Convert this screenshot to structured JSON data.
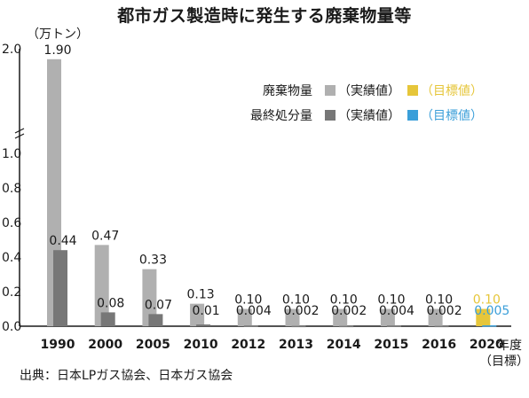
{
  "title": "都市ガス製造時に発生する廃棄物量等",
  "unit_label": "（万トン）",
  "source_text": "出典：日本LPガス協会、日本ガス協会",
  "year_suffix": "年度",
  "year_sub": "（目標）",
  "legend": {
    "rows": [
      {
        "label": "廃棄物量",
        "actual_color": "#b0b0b0",
        "target_color": "#e6c63a",
        "actual_text": "（実績値）",
        "target_text": "（目標値）"
      },
      {
        "label": "最終処分量",
        "actual_color": "#777777",
        "target_color": "#3b9fd9",
        "actual_text": "（実績値）",
        "target_text": "（目標値）"
      }
    ]
  },
  "chart_data": {
    "type": "bar",
    "title": "都市ガス製造時に発生する廃棄物量等",
    "xlabel": "年度",
    "ylabel": "（万トン）",
    "axis_break": true,
    "y_ticks": [
      "0.0",
      "0.2",
      "0.4",
      "0.6",
      "0.8",
      "1.0",
      "2.0"
    ],
    "categories": [
      "1990",
      "2000",
      "2005",
      "2010",
      "2012",
      "2013",
      "2014",
      "2015",
      "2016",
      "2020"
    ],
    "series": [
      {
        "name": "廃棄物量",
        "values": [
          1.9,
          0.47,
          0.33,
          0.13,
          0.1,
          0.1,
          0.1,
          0.1,
          0.1,
          0.1
        ],
        "labels": [
          "1.90",
          "0.47",
          "0.33",
          "0.13",
          "0.10",
          "0.10",
          "0.10",
          "0.10",
          "0.10",
          "0.10"
        ],
        "colors": [
          "#b0b0b0",
          "#b0b0b0",
          "#b0b0b0",
          "#b0b0b0",
          "#b0b0b0",
          "#b0b0b0",
          "#b0b0b0",
          "#b0b0b0",
          "#b0b0b0",
          "#e6c63a"
        ],
        "label_colors": [
          "#1a1a1a",
          "#1a1a1a",
          "#1a1a1a",
          "#1a1a1a",
          "#1a1a1a",
          "#1a1a1a",
          "#1a1a1a",
          "#1a1a1a",
          "#1a1a1a",
          "#e6c63a"
        ]
      },
      {
        "name": "最終処分量",
        "values": [
          0.44,
          0.08,
          0.07,
          0.01,
          0.004,
          0.002,
          0.002,
          0.004,
          0.002,
          0.005
        ],
        "labels": [
          "0.44",
          "0.08",
          "0.07",
          "0.01",
          "0.004",
          "0.002",
          "0.002",
          "0.004",
          "0.002",
          "0.005"
        ],
        "colors": [
          "#777777",
          "#777777",
          "#777777",
          "#777777",
          "#777777",
          "#777777",
          "#777777",
          "#777777",
          "#777777",
          "#3b9fd9"
        ],
        "label_colors": [
          "#1a1a1a",
          "#1a1a1a",
          "#1a1a1a",
          "#1a1a1a",
          "#1a1a1a",
          "#1a1a1a",
          "#1a1a1a",
          "#1a1a1a",
          "#1a1a1a",
          "#3b9fd9"
        ]
      }
    ]
  }
}
